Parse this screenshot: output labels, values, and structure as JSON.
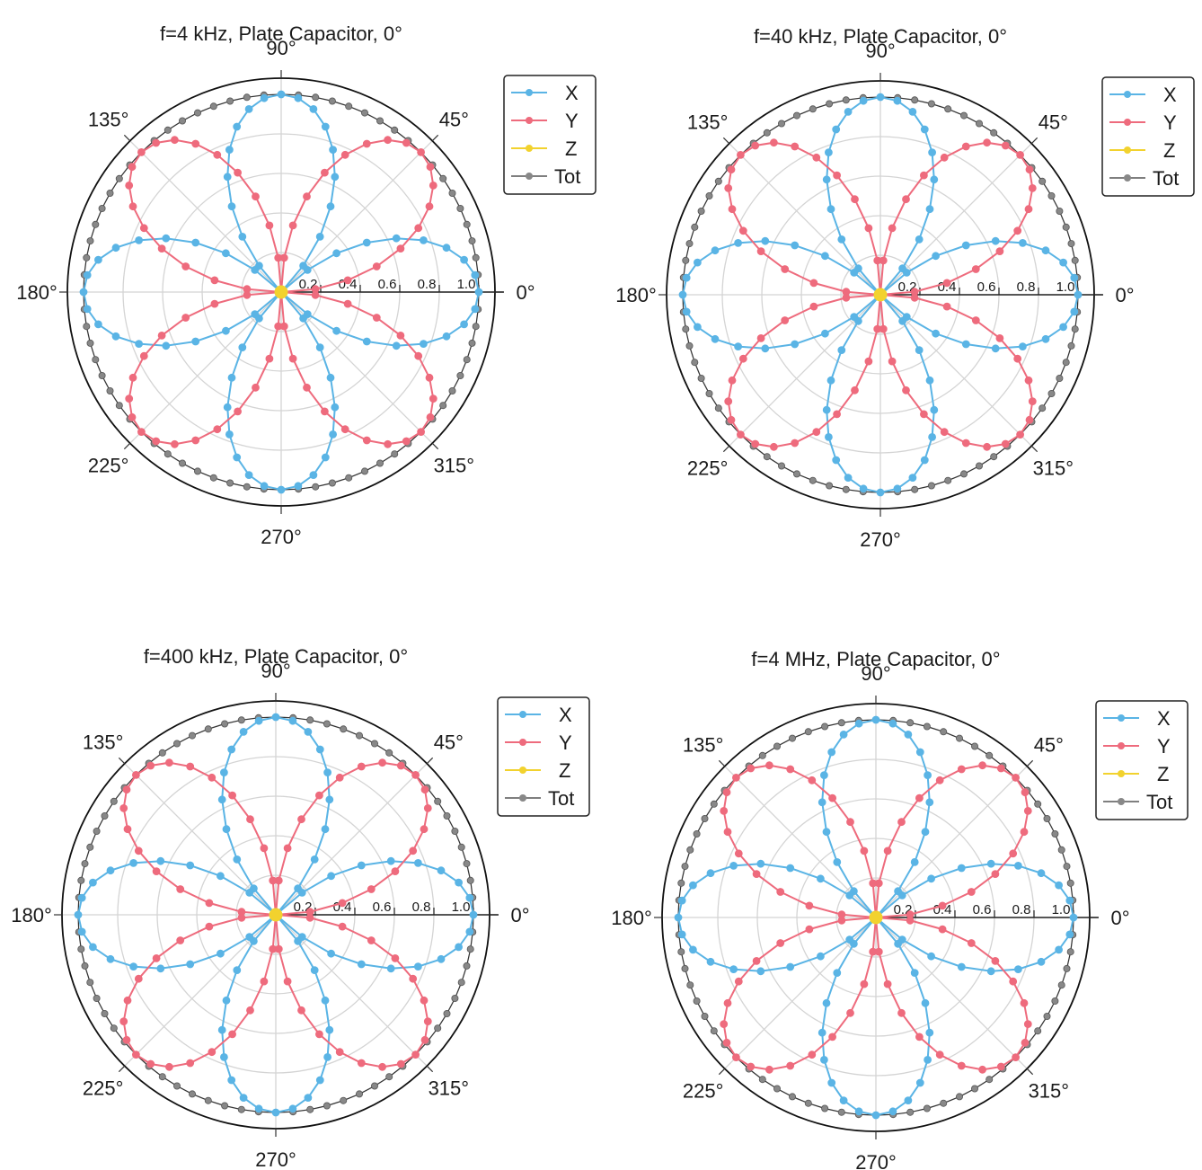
{
  "colors": {
    "X": "#5ab4e5",
    "Y": "#ee6b7d",
    "Z": "#f2d22e",
    "Tot": "#888888"
  },
  "legend_labels": [
    "X",
    "Y",
    "Z",
    "Tot"
  ],
  "chart_data": [
    {
      "type": "polar",
      "title": "f=4 kHz, Plate Capacitor, 0°",
      "angle_ticks": [
        "0°",
        "45°",
        "90°",
        "135°",
        "180°",
        "225°",
        "270°",
        "315°"
      ],
      "radial_ticks": [
        "0.2",
        "0.4",
        "0.6",
        "0.8",
        "1.0"
      ],
      "rlim": [
        0,
        1.0
      ],
      "grid": true,
      "legend": "top-right",
      "angle_step_deg": 5,
      "series": [
        {
          "name": "X",
          "formula": "|cos(2θ)|",
          "amplitude": 1.0
        },
        {
          "name": "Y",
          "formula": "|sin(2θ)|",
          "amplitude": 1.0
        },
        {
          "name": "Z",
          "formula": "constant",
          "amplitude": 0.0
        },
        {
          "name": "Tot",
          "formula": "constant",
          "amplitude": 1.0
        }
      ]
    },
    {
      "type": "polar",
      "title": "f=40 kHz, Plate Capacitor, 0°",
      "angle_ticks": [
        "0°",
        "45°",
        "90°",
        "135°",
        "180°",
        "225°",
        "270°",
        "315°"
      ],
      "radial_ticks": [
        "0.2",
        "0.4",
        "0.6",
        "0.8",
        "1.0"
      ],
      "rlim": [
        0,
        1.0
      ],
      "grid": true,
      "legend": "top-right",
      "angle_step_deg": 5,
      "series": [
        {
          "name": "X",
          "formula": "|cos(2θ)|",
          "amplitude": 1.0
        },
        {
          "name": "Y",
          "formula": "|sin(2θ)|",
          "amplitude": 1.0
        },
        {
          "name": "Z",
          "formula": "constant",
          "amplitude": 0.0
        },
        {
          "name": "Tot",
          "formula": "constant",
          "amplitude": 1.0
        }
      ]
    },
    {
      "type": "polar",
      "title": "f=400 kHz, Plate Capacitor, 0°",
      "angle_ticks": [
        "0°",
        "45°",
        "90°",
        "135°",
        "180°",
        "225°",
        "270°",
        "315°"
      ],
      "radial_ticks": [
        "0.2",
        "0.4",
        "0.6",
        "0.8",
        "1.0"
      ],
      "rlim": [
        0,
        1.0
      ],
      "grid": true,
      "legend": "top-right",
      "angle_step_deg": 5,
      "series": [
        {
          "name": "X",
          "formula": "|cos(2θ)|",
          "amplitude": 1.0
        },
        {
          "name": "Y",
          "formula": "|sin(2θ)|",
          "amplitude": 1.0
        },
        {
          "name": "Z",
          "formula": "constant",
          "amplitude": 0.0
        },
        {
          "name": "Tot",
          "formula": "constant",
          "amplitude": 1.0
        }
      ]
    },
    {
      "type": "polar",
      "title": "f=4 MHz, Plate Capacitor, 0°",
      "angle_ticks": [
        "0°",
        "45°",
        "90°",
        "135°",
        "180°",
        "225°",
        "270°",
        "315°"
      ],
      "radial_ticks": [
        "0.2",
        "0.4",
        "0.6",
        "0.8",
        "1.0"
      ],
      "rlim": [
        0,
        1.0
      ],
      "grid": true,
      "legend": "top-right",
      "angle_step_deg": 5,
      "series": [
        {
          "name": "X",
          "formula": "|cos(2θ)|",
          "amplitude": 1.0
        },
        {
          "name": "Y",
          "formula": "|sin(2θ)|",
          "amplitude": 1.0
        },
        {
          "name": "Z",
          "formula": "constant",
          "amplitude": 0.0
        },
        {
          "name": "Tot",
          "formula": "constant",
          "amplitude": 1.0
        }
      ]
    }
  ]
}
